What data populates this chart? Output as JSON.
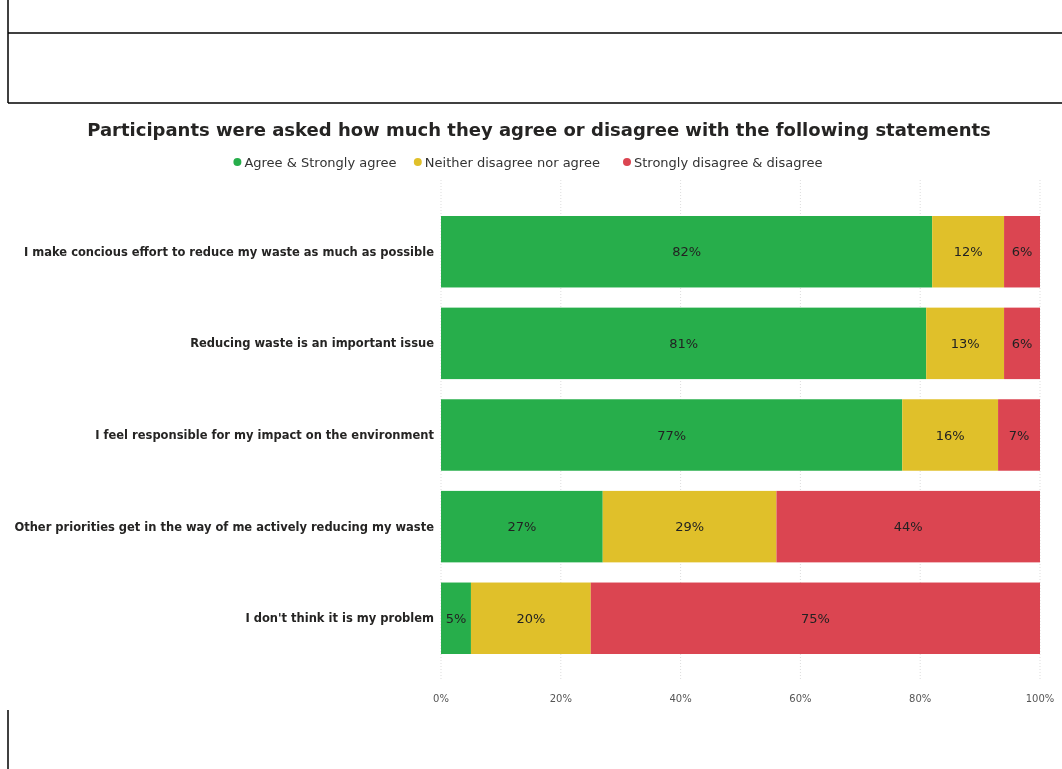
{
  "chart_data": {
    "type": "bar",
    "orientation": "horizontal",
    "stacked": true,
    "title": "Participants were asked how much they agree or disagree with the following statements",
    "categories": [
      "I make concious effort to reduce my waste as much as possible",
      "Reducing waste is an important issue",
      "I feel responsible for my impact on the environment",
      "Other priorities get in the way of me actively reducing my waste",
      "I don't think it is my problem"
    ],
    "series": [
      {
        "name": "Agree & Strongly agree",
        "color": "#27ae4b",
        "values": [
          82,
          81,
          77,
          27,
          5
        ],
        "value_labels": [
          "82%",
          "81%",
          "77%",
          "27%",
          "5%"
        ]
      },
      {
        "name": "Neither disagree nor agree",
        "color": "#e0c02a",
        "values": [
          12,
          13,
          16,
          29,
          20
        ],
        "value_labels": [
          "12%",
          "13%",
          "16%",
          "29%",
          "20%"
        ]
      },
      {
        "name": "Strongly disagree & disagree",
        "color": "#db4551",
        "values": [
          6,
          6,
          7,
          44,
          75
        ],
        "value_labels": [
          "6%",
          "6%",
          "7%",
          "44%",
          "75%"
        ]
      }
    ],
    "xlim": [
      0,
      100
    ],
    "xticks": [
      {
        "value": 0,
        "label": "0%"
      },
      {
        "value": 20,
        "label": "20%"
      },
      {
        "value": 40,
        "label": "40%"
      },
      {
        "value": 60,
        "label": "60%"
      },
      {
        "value": 80,
        "label": "80%"
      },
      {
        "value": 100,
        "label": "100%"
      }
    ],
    "grid": "x",
    "legend": "top"
  }
}
